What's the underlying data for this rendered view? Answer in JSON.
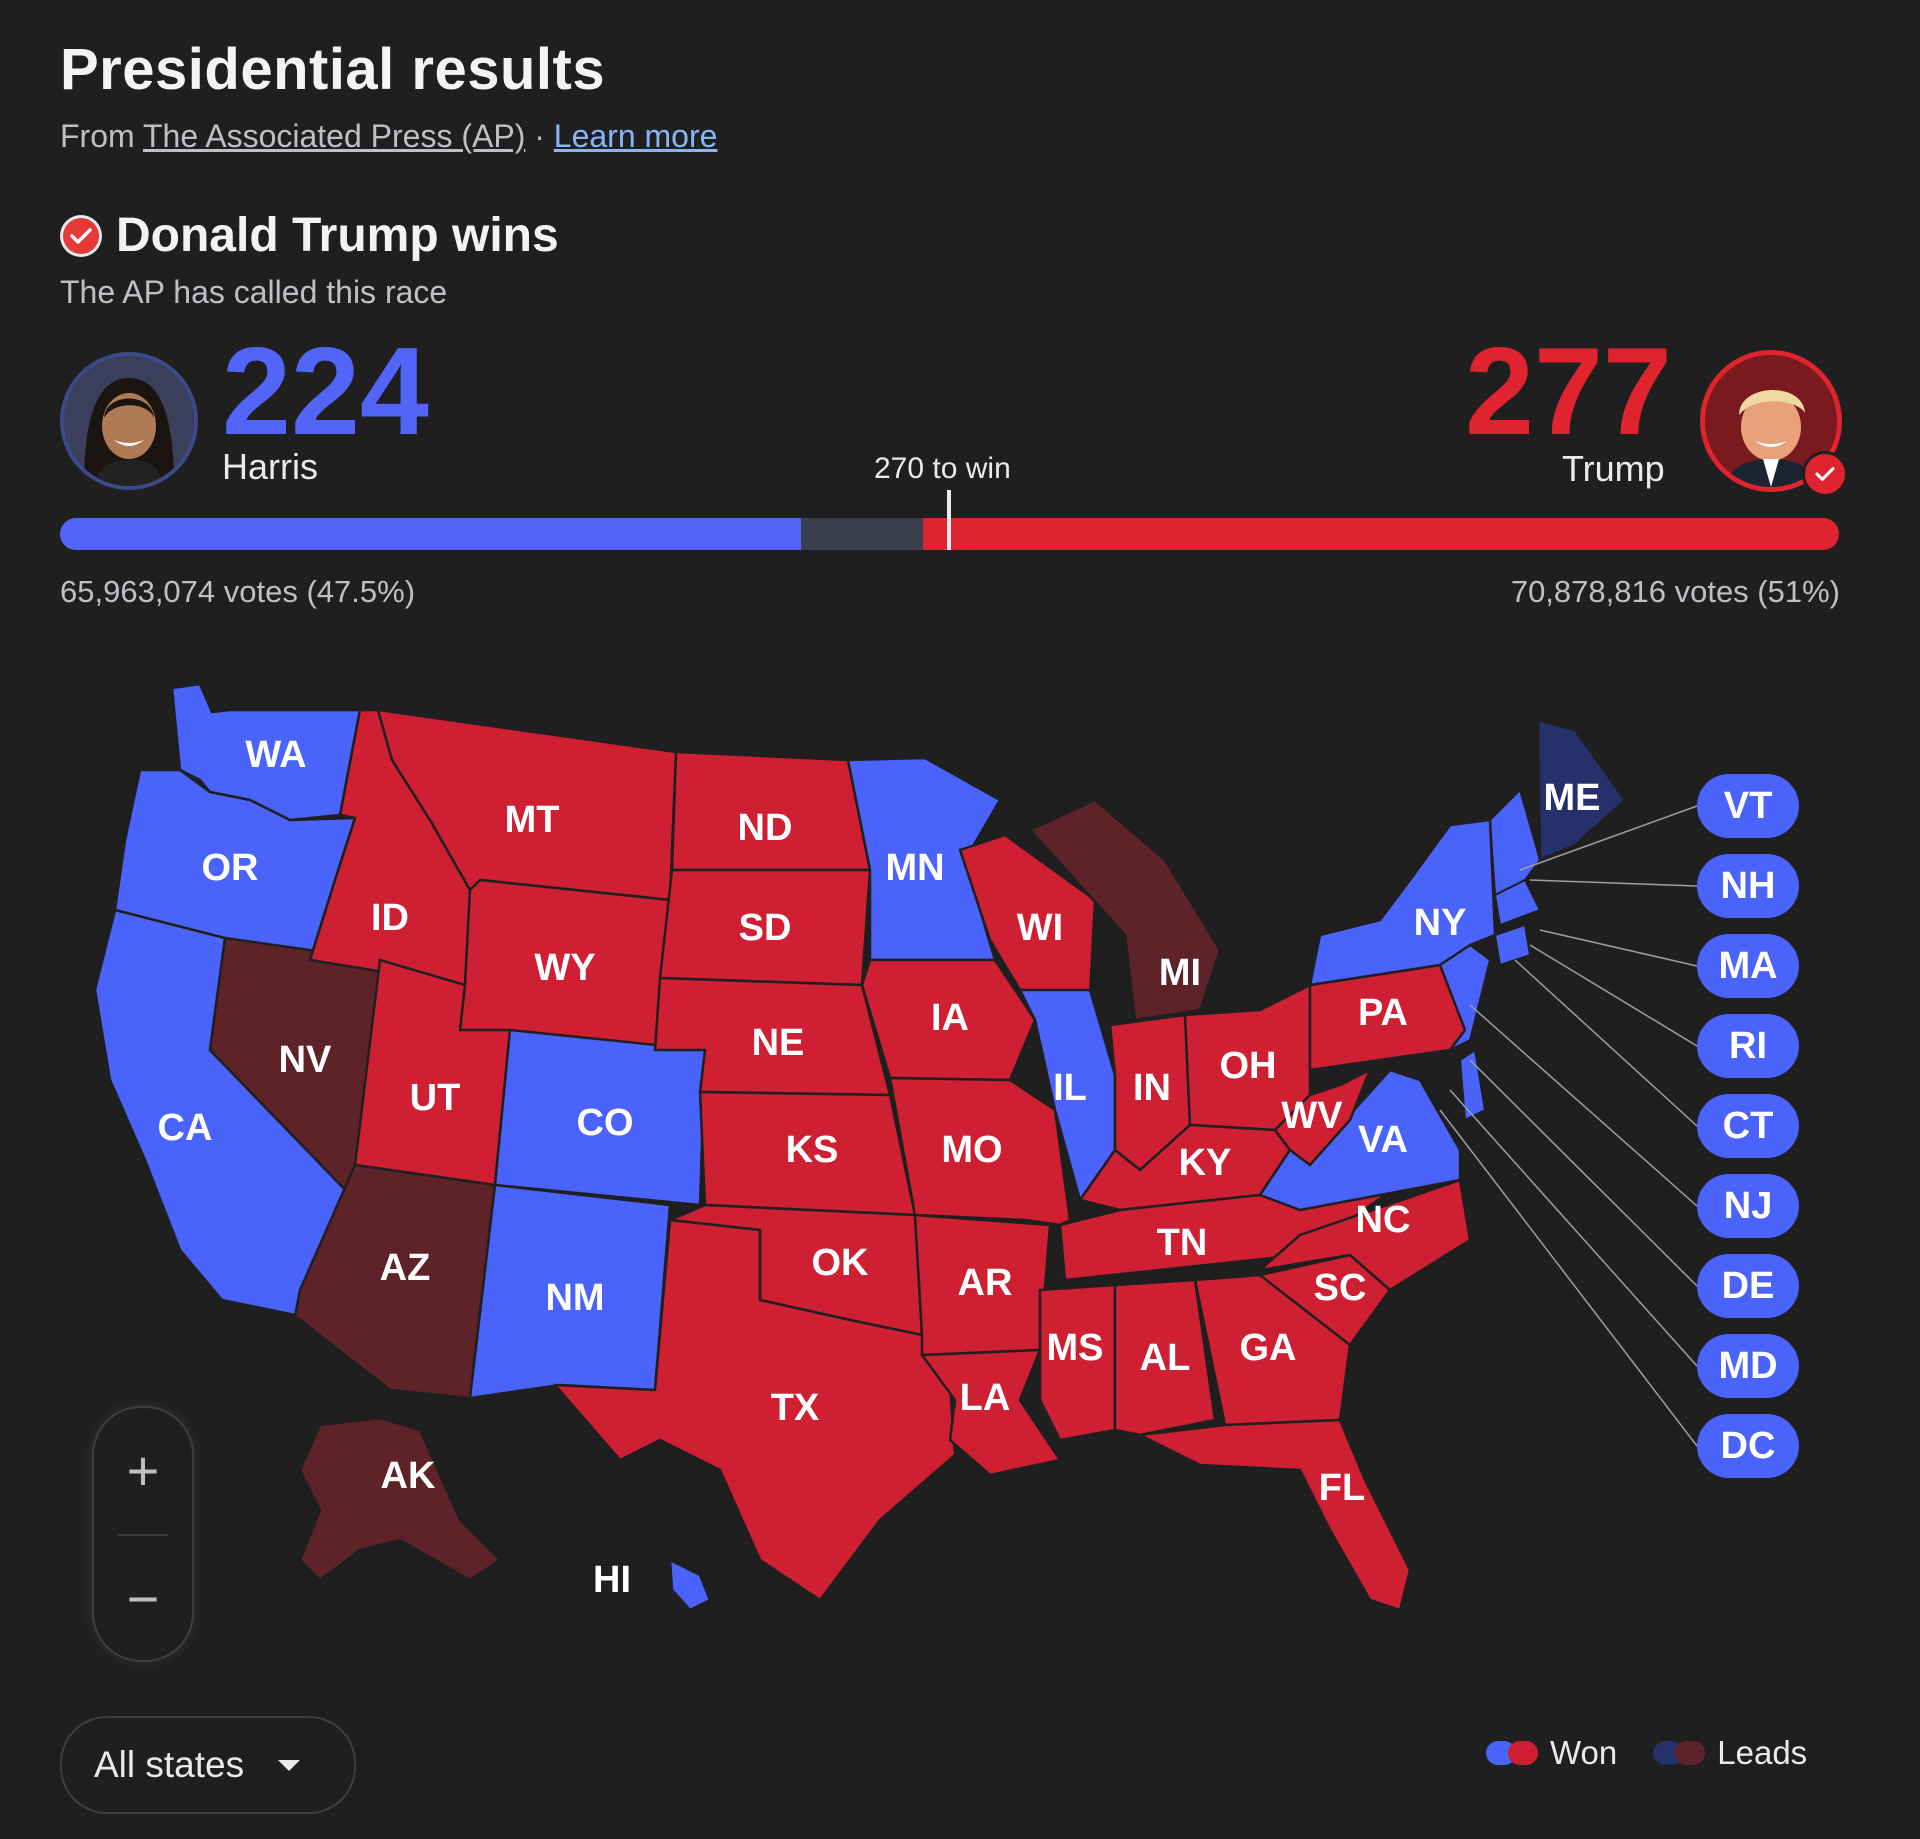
{
  "header": {
    "title": "Presidential results",
    "source_prefix": "From",
    "source_link": "The Associated Press (AP)",
    "separator": "·",
    "learn_more": "Learn more"
  },
  "result": {
    "winner_text": "Donald Trump wins",
    "called_text": "The AP has called this race"
  },
  "candidates": {
    "harris": {
      "name": "Harris",
      "electoral_votes": "224",
      "votes_text": "65,963,074 votes (47.5%)",
      "color": "#5265f8"
    },
    "trump": {
      "name": "Trump",
      "electoral_votes": "277",
      "votes_text": "70,878,816 votes (51%)",
      "color": "#e0242f"
    }
  },
  "bar": {
    "to_win_label": "270 to win",
    "total": 538,
    "to_win": 270,
    "harris": 224,
    "trump": 277,
    "uncalled_color": "#3a3e4f"
  },
  "map": {
    "colors": {
      "dem_won": "#4a63fa",
      "rep_won": "#cf1f33",
      "dem_leads": "#26306b",
      "rep_leads": "#5e2329",
      "border": "#1f1f1f"
    },
    "states": [
      {
        "abbr": "WA",
        "status": "dem_won"
      },
      {
        "abbr": "OR",
        "status": "dem_won"
      },
      {
        "abbr": "CA",
        "status": "dem_won"
      },
      {
        "abbr": "NV",
        "status": "rep_leads"
      },
      {
        "abbr": "ID",
        "status": "rep_won"
      },
      {
        "abbr": "MT",
        "status": "rep_won"
      },
      {
        "abbr": "WY",
        "status": "rep_won"
      },
      {
        "abbr": "UT",
        "status": "rep_won"
      },
      {
        "abbr": "AZ",
        "status": "rep_leads"
      },
      {
        "abbr": "CO",
        "status": "dem_won"
      },
      {
        "abbr": "NM",
        "status": "dem_won"
      },
      {
        "abbr": "ND",
        "status": "rep_won"
      },
      {
        "abbr": "SD",
        "status": "rep_won"
      },
      {
        "abbr": "NE",
        "status": "rep_won"
      },
      {
        "abbr": "KS",
        "status": "rep_won"
      },
      {
        "abbr": "OK",
        "status": "rep_won"
      },
      {
        "abbr": "TX",
        "status": "rep_won"
      },
      {
        "abbr": "MN",
        "status": "dem_won"
      },
      {
        "abbr": "IA",
        "status": "rep_won"
      },
      {
        "abbr": "MO",
        "status": "rep_won"
      },
      {
        "abbr": "AR",
        "status": "rep_won"
      },
      {
        "abbr": "LA",
        "status": "rep_won"
      },
      {
        "abbr": "WI",
        "status": "rep_won"
      },
      {
        "abbr": "IL",
        "status": "dem_won"
      },
      {
        "abbr": "MI",
        "status": "rep_leads"
      },
      {
        "abbr": "IN",
        "status": "rep_won"
      },
      {
        "abbr": "OH",
        "status": "rep_won"
      },
      {
        "abbr": "KY",
        "status": "rep_won"
      },
      {
        "abbr": "TN",
        "status": "rep_won"
      },
      {
        "abbr": "MS",
        "status": "rep_won"
      },
      {
        "abbr": "AL",
        "status": "rep_won"
      },
      {
        "abbr": "GA",
        "status": "rep_won"
      },
      {
        "abbr": "FL",
        "status": "rep_won"
      },
      {
        "abbr": "SC",
        "status": "rep_won"
      },
      {
        "abbr": "NC",
        "status": "rep_won"
      },
      {
        "abbr": "VA",
        "status": "dem_won"
      },
      {
        "abbr": "WV",
        "status": "rep_won"
      },
      {
        "abbr": "PA",
        "status": "rep_won"
      },
      {
        "abbr": "NY",
        "status": "dem_won"
      },
      {
        "abbr": "ME",
        "status": "dem_leads"
      },
      {
        "abbr": "AK",
        "status": "rep_leads"
      },
      {
        "abbr": "HI",
        "status": "dem_won"
      }
    ],
    "small_states": [
      "VT",
      "NH",
      "MA",
      "RI",
      "CT",
      "NJ",
      "DE",
      "MD",
      "DC"
    ]
  },
  "controls": {
    "zoom_in": "+",
    "zoom_out": "−",
    "dropdown_label": "All states"
  },
  "legend": {
    "won": "Won",
    "leads": "Leads"
  }
}
